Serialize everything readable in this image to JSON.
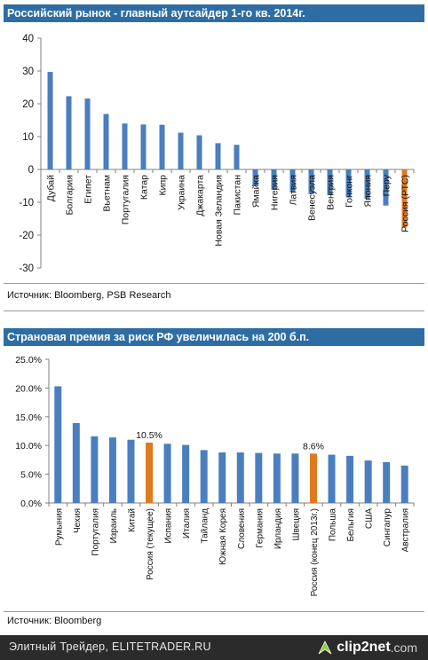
{
  "chart1": {
    "title": "Российский рынок - главный аутсайдер 1-го кв. 2014г.",
    "source": "Источник: Bloomberg, PSB Research",
    "chart_data": {
      "type": "bar",
      "categories": [
        "Дубай",
        "Болгария",
        "Египет",
        "Вьетнам",
        "Португалия",
        "Катар",
        "Кипр",
        "Украина",
        "Джакарта",
        "Новая Зеландия",
        "Пакистан",
        "Ямайка",
        "Нигерия",
        "Латвия",
        "Венесуэла",
        "Венгрия",
        "Гонконг",
        "Япония",
        "Перу",
        "Россия (РТС)"
      ],
      "values": [
        29.7,
        22.3,
        21.6,
        16.9,
        14.0,
        13.7,
        13.6,
        11.2,
        10.4,
        8.0,
        7.5,
        -5.0,
        -6.2,
        -7.0,
        -7.5,
        -7.8,
        -8.5,
        -9.0,
        -11.0,
        -17.7
      ],
      "highlight_index": 19,
      "ylim": [
        -30,
        40
      ],
      "yticks": [
        -30,
        -20,
        -10,
        0,
        10,
        20,
        30,
        40
      ],
      "ytick_labels": [
        "-30",
        "-20",
        "-10",
        "0",
        "10",
        "20",
        "30",
        "40"
      ],
      "bar_color": "#4a7ebf",
      "highlight_color": "#e07a1f",
      "grid": false
    }
  },
  "chart2": {
    "title": "Страновая премия за риск РФ увеличилась на 200 б.п.",
    "source": "Источник: Bloomberg",
    "chart_data": {
      "type": "bar",
      "categories": [
        "Румыния",
        "Чехия",
        "Португалия",
        "Израиль",
        "Китай",
        "Россия (текущее)",
        "Испания",
        "Италия",
        "Тайланд",
        "Южная Корея",
        "Словения",
        "Германия",
        "Ирландия",
        "Швеция",
        "Россия (конец 2013г.)",
        "Польша",
        "Бельгия",
        "США",
        "Сингапур",
        "Австралия"
      ],
      "values": [
        20.3,
        13.9,
        11.6,
        11.4,
        11.0,
        10.5,
        10.3,
        10.1,
        9.2,
        8.8,
        8.8,
        8.7,
        8.6,
        8.6,
        8.6,
        8.4,
        8.2,
        7.4,
        7.1,
        6.5
      ],
      "highlight_indices": [
        5,
        14
      ],
      "data_labels": [
        {
          "index": 5,
          "text": "10.5%"
        },
        {
          "index": 14,
          "text": "8.6%"
        }
      ],
      "ylim": [
        0,
        25
      ],
      "yticks": [
        0,
        5,
        10,
        15,
        20,
        25
      ],
      "ytick_labels": [
        "0.0%",
        "5.0%",
        "10.0%",
        "15.0%",
        "20.0%",
        "25.0%"
      ],
      "bar_color": "#4a7ebf",
      "highlight_color": "#e07a1f",
      "grid": false
    }
  },
  "footer": {
    "text": "Элитный Трейдер, ELITETRADER.RU",
    "logo_text": "clip2net",
    "logo_domain": ".com",
    "logo_icon": "clip2net-arrow-icon"
  }
}
